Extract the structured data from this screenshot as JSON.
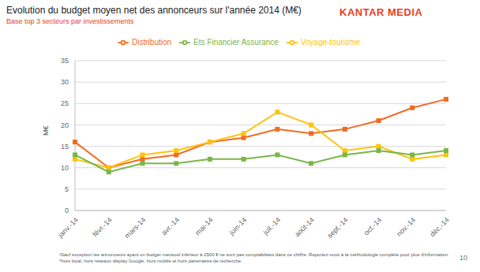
{
  "chart_data": {
    "type": "line",
    "title": "Evolution du budget moyen net des annonceurs  sur l'année 2014 (M€)",
    "subtitle": "Base top 3 secteurs par investissements",
    "annotations": [
      "KANTAR MEDIA",
      "¹Sauf exception les annonceurs ayant un budget mensuel inférieur à 2500 € ne sont pas comptabilisés dans ce chiffre. Reportez-vous à la méthodologie  complète pour plus d'information",
      "*hors local, hors réseaux display Google, hors mobile  et hors partenaires de recherche.",
      "10"
    ],
    "y_label": "M€",
    "categories": [
      "janv.-14",
      "févr.-14",
      "mars-14",
      "avr.-14",
      "mai-14",
      "juin-14",
      "juil.-14",
      "août-14",
      "sept.-14",
      "oct.-14",
      "nov.-14",
      "déc.-14"
    ],
    "series": [
      {
        "name": "Distribution",
        "color": "#f26b21",
        "marker": "square",
        "line_style": "solid",
        "values": [
          16,
          10,
          12,
          13,
          16,
          17,
          19,
          18,
          19,
          21,
          24,
          26
        ]
      },
      {
        "name": "Voyage-tourisme",
        "color": "#ffc20e",
        "marker": "square",
        "line_style": "solid",
        "values": [
          12,
          10,
          13,
          14,
          16,
          18,
          23,
          20,
          14,
          15,
          12,
          13
        ]
      },
      {
        "name": "Ets Financier Assurance",
        "color": "#7ab648",
        "marker": "square",
        "line_style": "solid",
        "values": [
          13,
          9,
          11,
          11,
          12,
          12,
          13,
          11,
          13,
          14,
          13,
          14
        ]
      }
    ],
    "ylim": [
      0,
      35
    ],
    "yticks": [
      0,
      5,
      10,
      15,
      20,
      25,
      30,
      35
    ],
    "grid": true,
    "legend": "top"
  }
}
